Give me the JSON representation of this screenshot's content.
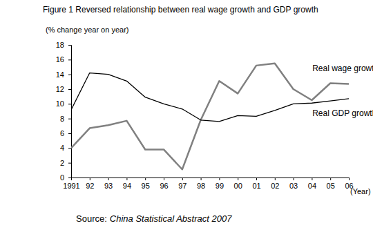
{
  "chart_data": {
    "type": "line",
    "title": "Figure 1 Reversed relationship between real wage growth and GDP growth",
    "y_label": "(% change year on year)",
    "x_label": "(Year)",
    "source_prefix": "Source:",
    "source": "China Statistical Abstract 2007",
    "categories": [
      "1991",
      "92",
      "93",
      "94",
      "95",
      "96",
      "97",
      "98",
      "99",
      "00",
      "01",
      "02",
      "03",
      "04",
      "05",
      "06"
    ],
    "series": [
      {
        "name": "Real wage growth",
        "color": "#808080",
        "values": [
          4.0,
          6.7,
          7.1,
          7.7,
          3.8,
          3.8,
          1.1,
          7.8,
          13.1,
          11.4,
          15.2,
          15.5,
          12.0,
          10.5,
          12.8,
          12.7
        ]
      },
      {
        "name": "Real GDP growth",
        "color": "#000000",
        "values": [
          9.2,
          14.2,
          14.0,
          13.1,
          10.9,
          10.0,
          9.3,
          7.8,
          7.6,
          8.4,
          8.3,
          9.1,
          10.0,
          10.1,
          10.4,
          10.7
        ]
      }
    ],
    "ylim": [
      0,
      18
    ],
    "yticks": [
      0,
      2,
      4,
      6,
      8,
      10,
      12,
      14,
      16,
      18
    ],
    "grid": false
  }
}
